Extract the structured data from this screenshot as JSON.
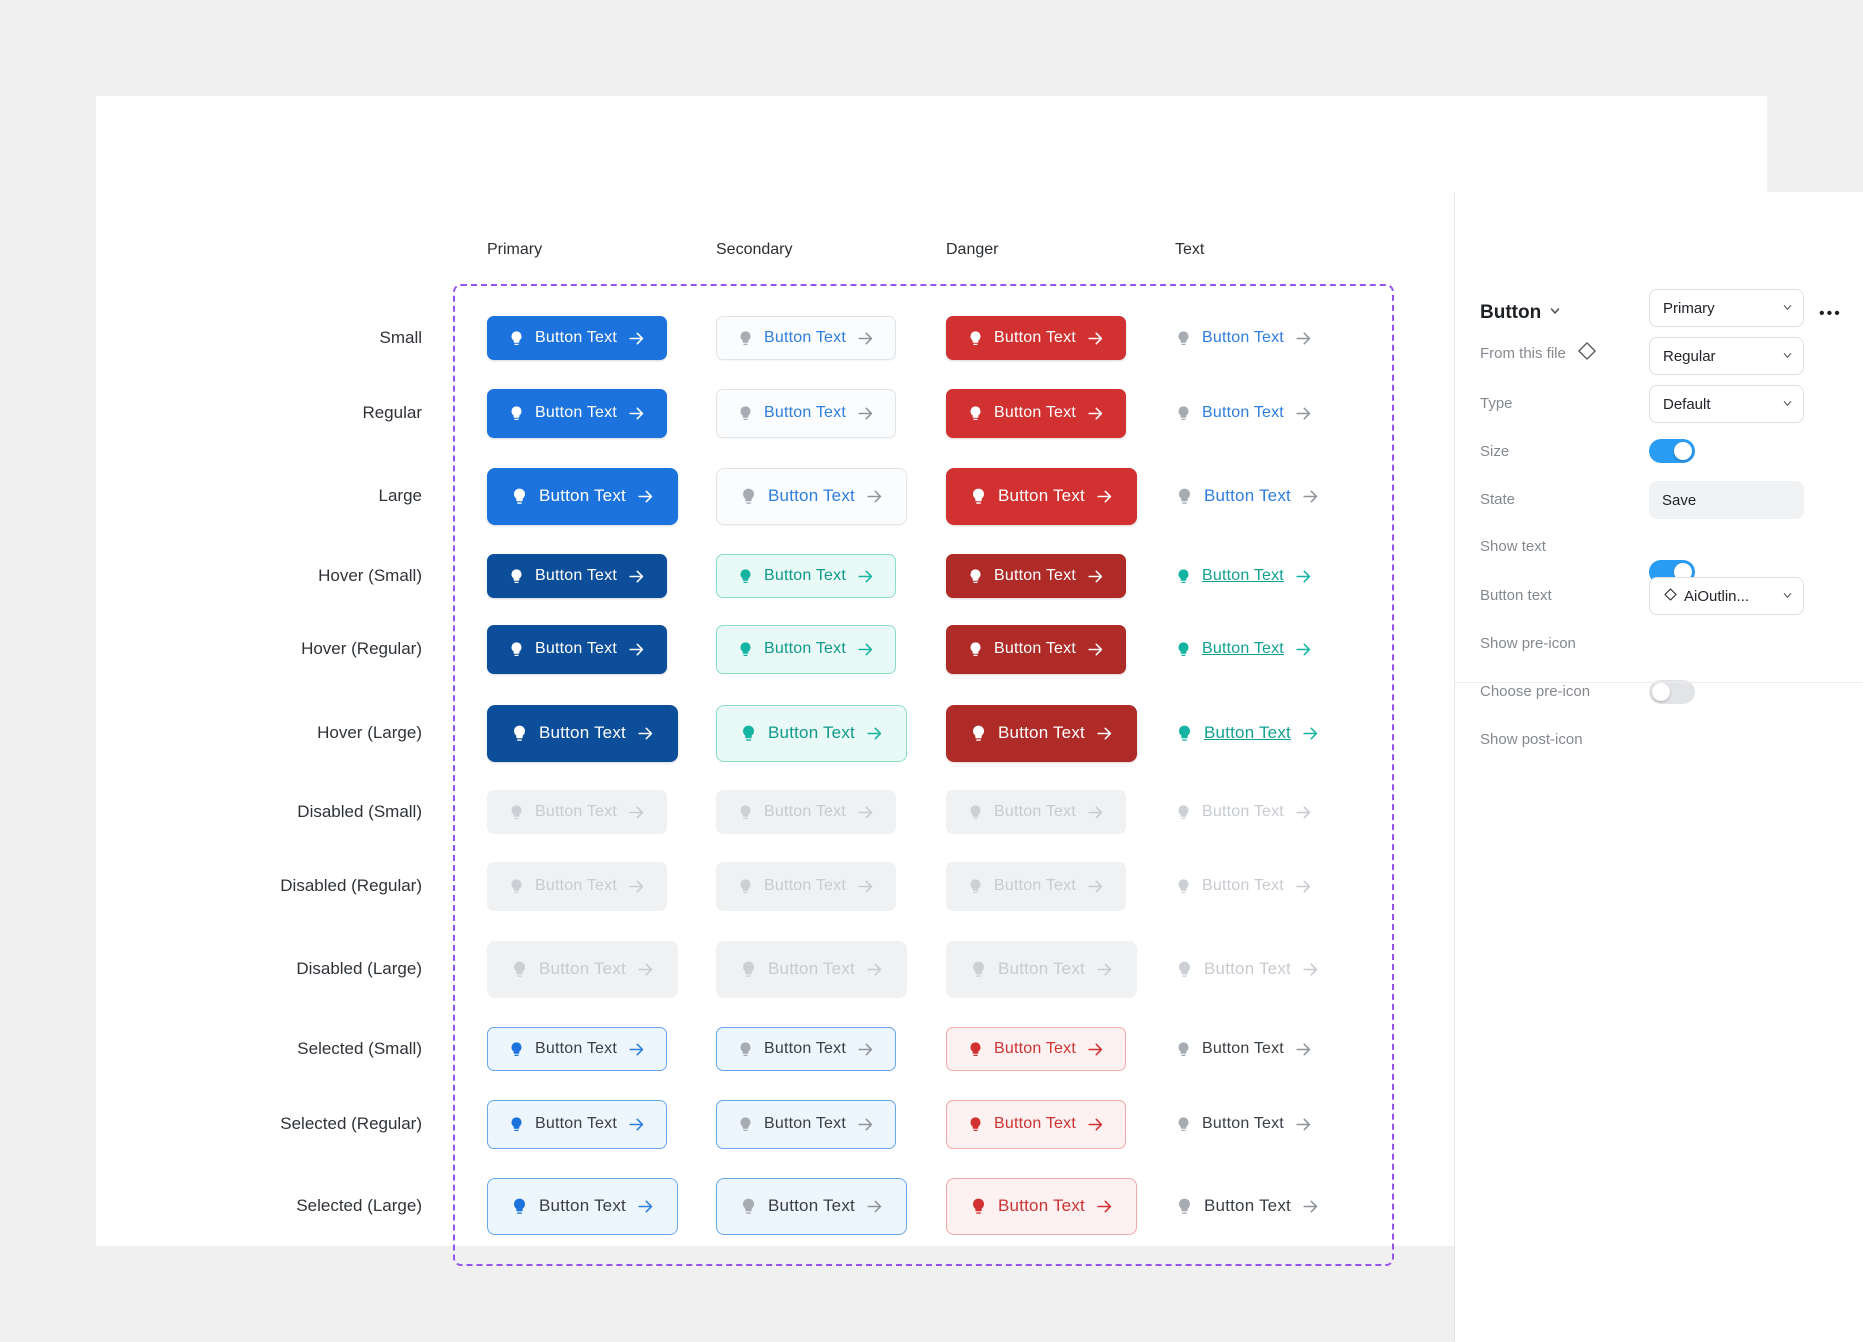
{
  "canvas": {
    "button_label": "Button Text",
    "columns": [
      {
        "label": "Primary",
        "type": "primary"
      },
      {
        "label": "Secondary",
        "type": "secondary"
      },
      {
        "label": "Danger",
        "type": "danger"
      },
      {
        "label": "Text",
        "type": "text"
      }
    ],
    "rows": [
      {
        "label": "Small",
        "state": "default",
        "size": "small"
      },
      {
        "label": "Regular",
        "state": "default",
        "size": "regular"
      },
      {
        "label": "Large",
        "state": "default",
        "size": "large"
      },
      {
        "label": "Hover (Small)",
        "state": "hover",
        "size": "small"
      },
      {
        "label": "Hover (Regular)",
        "state": "hover",
        "size": "regular"
      },
      {
        "label": "Hover (Large)",
        "state": "hover",
        "size": "large"
      },
      {
        "label": "Disabled (Small)",
        "state": "disabled",
        "size": "small"
      },
      {
        "label": "Disabled (Regular)",
        "state": "disabled",
        "size": "regular"
      },
      {
        "label": "Disabled (Large)",
        "state": "disabled",
        "size": "large"
      },
      {
        "label": "Selected (Small)",
        "state": "selected",
        "size": "small"
      },
      {
        "label": "Selected (Regular)",
        "state": "selected",
        "size": "regular"
      },
      {
        "label": "Selected (Large)",
        "state": "selected",
        "size": "large"
      }
    ]
  },
  "panel": {
    "title": "Button",
    "source_label": "From this file",
    "more_glyph": "•••",
    "fields": [
      {
        "label": "Type",
        "control": "select",
        "value": "Primary"
      },
      {
        "label": "Size",
        "control": "select",
        "value": "Regular"
      },
      {
        "label": "State",
        "control": "select",
        "value": "Default"
      },
      {
        "label": "Show text",
        "control": "toggle",
        "value": "on"
      },
      {
        "label": "Button text",
        "control": "input",
        "value": "Save"
      },
      {
        "label": "Show pre-icon",
        "control": "toggle",
        "value": "on"
      },
      {
        "label": "Choose pre-icon",
        "control": "icon-select",
        "value": "AiOutlin..."
      },
      {
        "label": "Show post-icon",
        "control": "toggle",
        "value": "off"
      }
    ]
  },
  "colors": {
    "primary_blue": "#1c73dd",
    "primary_hover": "#0d4e9b",
    "danger_red": "#d23131",
    "danger_hover": "#ae2b28",
    "secondary_hover_teal": "#15b3a1",
    "selected_blue_border": "#67a8e9",
    "selected_blue_bg": "#edf5fd",
    "selected_red_bg": "#fdf1f1",
    "disabled_bg": "#f0f1f2",
    "frame_purple": "#9553f0",
    "toggle_on_blue": "#2b9cf3"
  }
}
